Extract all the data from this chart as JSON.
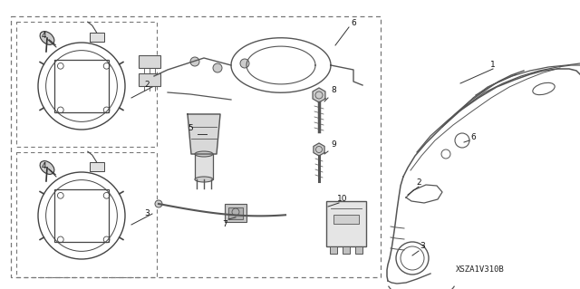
{
  "diagram_code": "XSZA1V310B",
  "bg_color": "#ffffff",
  "fig_width": 6.4,
  "fig_height": 3.19,
  "dpi": 100
}
